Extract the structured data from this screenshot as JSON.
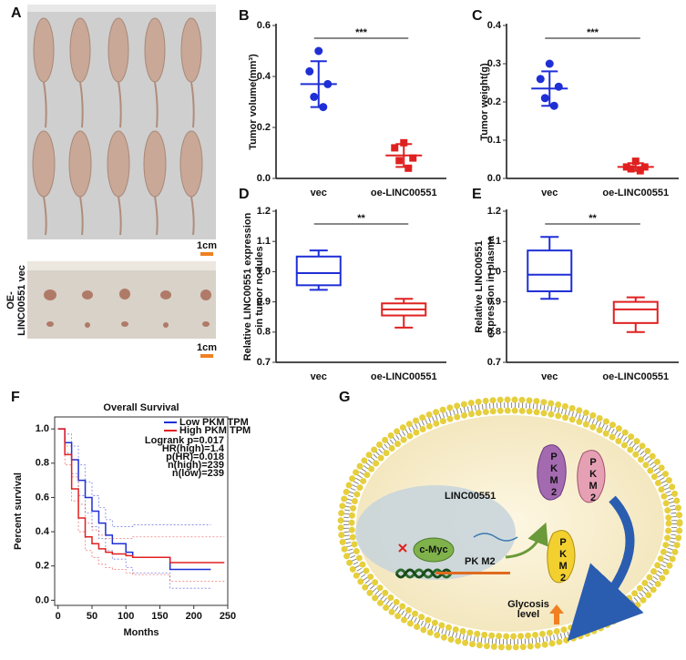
{
  "panel_labels": [
    "A",
    "B",
    "C",
    "D",
    "E",
    "F",
    "G"
  ],
  "photo": {
    "scale_top": "1cm",
    "scale_bottom": "1cm",
    "side_label": [
      "OE-",
      "LINC00551 vec"
    ]
  },
  "chart_data": [
    {
      "type": "dot",
      "ylabel": "Tumor volume(mm³)",
      "categories": [
        "vec",
        "oe-LINC00551"
      ],
      "colors": [
        "#1f2fd6",
        "#e02020"
      ],
      "markers": [
        "circle",
        "square"
      ],
      "points": [
        [
          0.5,
          0.42,
          0.37,
          0.32,
          0.28
        ],
        [
          0.14,
          0.12,
          0.08,
          0.07,
          0.04
        ]
      ],
      "means": [
        0.37,
        0.09
      ],
      "sds": [
        0.09,
        0.045
      ],
      "ylim": [
        0,
        0.6
      ],
      "yticks": [
        {
          "value": 0,
          "label": "0.0"
        },
        0.2,
        0.4,
        0.6
      ],
      "significance": "***"
    },
    {
      "type": "dot",
      "ylabel": "Tumor weight(g)",
      "categories": [
        "vec",
        "oe-LINC00551"
      ],
      "colors": [
        "#1f2fd6",
        "#e02020"
      ],
      "markers": [
        "circle",
        "square"
      ],
      "points": [
        [
          0.3,
          0.26,
          0.24,
          0.21,
          0.19
        ],
        [
          0.045,
          0.03,
          0.03,
          0.025,
          0.02
        ]
      ],
      "means": [
        0.235,
        0.03
      ],
      "sds": [
        0.045,
        0.01
      ],
      "ylim": [
        0,
        0.4
      ],
      "yticks": [
        {
          "value": 0,
          "label": "0.0"
        },
        0.1,
        0.2,
        0.3,
        0.4
      ],
      "significance": "***"
    },
    {
      "type": "box",
      "ylabel": [
        "Relative LINC00551  expression",
        "in tumor nodules"
      ],
      "categories": [
        "vec",
        "oe-LINC00551"
      ],
      "colors": [
        "#1f2fd6",
        "#e02020"
      ],
      "boxes": [
        {
          "min": 0.94,
          "q1": 0.955,
          "median": 0.995,
          "q3": 1.05,
          "max": 1.07
        },
        {
          "min": 0.815,
          "q1": 0.855,
          "median": 0.875,
          "q3": 0.895,
          "max": 0.91
        }
      ],
      "ylim": [
        0.7,
        1.2
      ],
      "yticks": [
        0.7,
        0.8,
        0.9,
        {
          "value": 1,
          "label": "1.0"
        },
        1.1,
        1.2
      ],
      "significance": "**"
    },
    {
      "type": "box",
      "ylabel": [
        "Relative LINC00551",
        "expression in plasma"
      ],
      "categories": [
        "vec",
        "oe-LINC00551"
      ],
      "colors": [
        "#1f2fd6",
        "#e02020"
      ],
      "boxes": [
        {
          "min": 0.91,
          "q1": 0.935,
          "median": 0.99,
          "q3": 1.07,
          "max": 1.115
        },
        {
          "min": 0.8,
          "q1": 0.83,
          "median": 0.875,
          "q3": 0.9,
          "max": 0.915
        }
      ],
      "ylim": [
        0.7,
        1.2
      ],
      "yticks": [
        0.7,
        0.8,
        0.9,
        {
          "value": 1,
          "label": "1.0"
        },
        1.1,
        1.2
      ],
      "significance": "**"
    },
    {
      "type": "line",
      "title": "Overall Survival",
      "xlabel": "Months",
      "ylabel": "Percent survival",
      "xlim": [
        -5,
        250
      ],
      "xticks": [
        0,
        50,
        100,
        150,
        200,
        250
      ],
      "ylim": [
        -0.03,
        1.07
      ],
      "yticks": [
        {
          "value": 0,
          "label": "0.0"
        },
        0.2,
        0.4,
        0.6,
        0.8,
        {
          "value": 1,
          "label": "1.0"
        }
      ],
      "series": [
        {
          "name": "Low PKM TPM",
          "color": "#1f2fd6",
          "x": [
            0,
            10,
            10,
            20,
            20,
            30,
            30,
            40,
            40,
            50,
            50,
            60,
            60,
            70,
            70,
            80,
            80,
            100,
            100,
            110,
            110,
            165,
            165,
            225
          ],
          "values": [
            1,
            1,
            0.92,
            0.92,
            0.82,
            0.82,
            0.7,
            0.7,
            0.6,
            0.6,
            0.52,
            0.52,
            0.45,
            0.45,
            0.38,
            0.38,
            0.33,
            0.33,
            0.28,
            0.28,
            0.25,
            0.25,
            0.18,
            0.18
          ],
          "lower": [
            1,
            1,
            0.86,
            0.86,
            0.74,
            0.74,
            0.61,
            0.61,
            0.51,
            0.51,
            0.43,
            0.43,
            0.36,
            0.36,
            0.29,
            0.29,
            0.24,
            0.24,
            0.19,
            0.19,
            0.16,
            0.16,
            0.07,
            0.07
          ],
          "upper": [
            1,
            1,
            0.97,
            0.97,
            0.9,
            0.9,
            0.79,
            0.79,
            0.69,
            0.69,
            0.61,
            0.61,
            0.54,
            0.54,
            0.47,
            0.47,
            0.43,
            0.43,
            0.43,
            0.43,
            0.44,
            0.44,
            0.44,
            0.44
          ]
        },
        {
          "name": "High PKM TPM",
          "color": "#e02020",
          "x": [
            0,
            10,
            10,
            20,
            20,
            30,
            30,
            40,
            40,
            50,
            50,
            60,
            60,
            70,
            70,
            80,
            80,
            100,
            100,
            110,
            110,
            165,
            165,
            245
          ],
          "values": [
            1,
            1,
            0.85,
            0.85,
            0.65,
            0.65,
            0.48,
            0.48,
            0.37,
            0.37,
            0.33,
            0.33,
            0.3,
            0.3,
            0.28,
            0.28,
            0.27,
            0.27,
            0.26,
            0.26,
            0.25,
            0.25,
            0.22,
            0.22
          ],
          "lower": [
            1,
            1,
            0.79,
            0.79,
            0.58,
            0.58,
            0.4,
            0.4,
            0.29,
            0.29,
            0.25,
            0.25,
            0.21,
            0.21,
            0.19,
            0.19,
            0.18,
            0.18,
            0.16,
            0.16,
            0.15,
            0.15,
            0.11,
            0.11
          ],
          "upper": [
            1,
            1,
            0.9,
            0.9,
            0.72,
            0.72,
            0.56,
            0.56,
            0.45,
            0.45,
            0.41,
            0.41,
            0.38,
            0.38,
            0.36,
            0.36,
            0.36,
            0.36,
            0.36,
            0.36,
            0.37,
            0.37,
            0.37,
            0.37
          ]
        }
      ],
      "annotations": [
        "Logrank p=0.017",
        "HR(high)=1.4",
        "p(HR)=0.018",
        "n(high)=239",
        "n(low)=239"
      ]
    }
  ],
  "diagram": {
    "lnc": "LINC00551",
    "myc": "c-Myc",
    "gene": "PK M2",
    "protein": "PKM2",
    "glycosis": "Glycosis",
    "level": "level"
  }
}
